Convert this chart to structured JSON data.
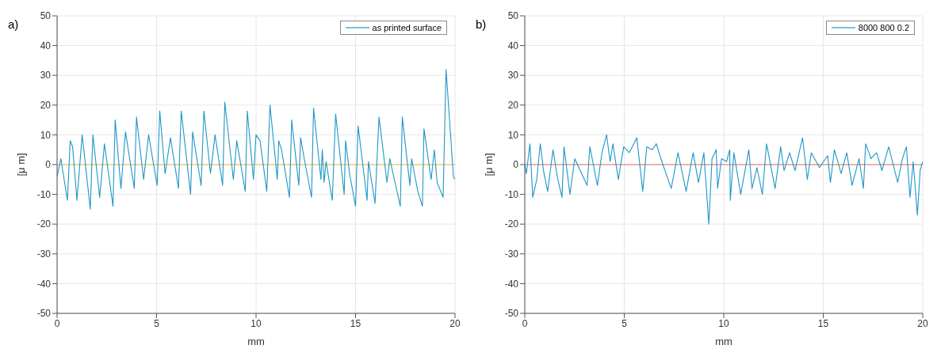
{
  "chart_data": [
    {
      "type": "line",
      "title": "a)",
      "xlabel": "mm",
      "ylabel": "[μ m]",
      "xlim": [
        0,
        20
      ],
      "xticks": [
        0,
        5,
        10,
        15,
        20
      ],
      "ylim": [
        -50,
        50
      ],
      "yticks": [
        -50,
        -40,
        -30,
        -20,
        -10,
        0,
        10,
        20,
        30,
        40,
        50
      ],
      "grid": true,
      "legend": "top right",
      "ref_lines": [
        {
          "axis": "y",
          "value": 0,
          "color": "#f5b54a"
        }
      ],
      "series": [
        {
          "name": "as printed surface",
          "color": "#1f97c6",
          "x": [
            0,
            0.03,
            0.19,
            0.52,
            0.66,
            0.78,
            1.0,
            1.26,
            1.67,
            1.8,
            2.14,
            2.38,
            2.81,
            2.92,
            3.21,
            3.44,
            3.88,
            3.99,
            4.35,
            4.6,
            5.03,
            5.16,
            5.43,
            5.7,
            6.1,
            6.24,
            6.71,
            6.81,
            7.24,
            7.38,
            7.71,
            7.94,
            8.32,
            8.43,
            8.86,
            9.03,
            9.46,
            9.56,
            9.87,
            10.0,
            10.2,
            10.54,
            10.7,
            11.07,
            11.14,
            11.28,
            11.68,
            11.79,
            12.15,
            12.24,
            12.42,
            12.79,
            12.89,
            13.26,
            13.33,
            13.42,
            13.52,
            13.83,
            14.0,
            14.43,
            14.5,
            14.7,
            15.0,
            15.13,
            15.58,
            15.65,
            15.98,
            16.18,
            16.58,
            16.72,
            17.25,
            17.35,
            17.73,
            17.82,
            18.13,
            18.36,
            18.44,
            18.8,
            18.96,
            19.1,
            19.4,
            19.55,
            19.92,
            20.0
          ],
          "values": [
            -4,
            -3,
            2,
            -12,
            8,
            6,
            -12,
            10,
            -15,
            10,
            -11,
            7,
            -14,
            15,
            -8,
            11,
            -8,
            16,
            -5,
            10,
            -7,
            18,
            -3,
            9,
            -8,
            18,
            -10,
            11,
            -7,
            18,
            -3,
            10,
            -7,
            21,
            -5,
            8,
            -9,
            18,
            -5,
            10,
            8,
            -9,
            20,
            -5,
            8,
            5,
            -11,
            15,
            -7,
            9,
            2,
            -11,
            19,
            -5,
            5,
            -6,
            1,
            -12,
            17,
            -10,
            8,
            -3,
            -14,
            13,
            -12,
            1,
            -13,
            16,
            -6,
            2,
            -14,
            16,
            -7,
            2,
            -9,
            -14,
            12,
            -5,
            5,
            -6,
            -11,
            32,
            -4,
            -5
          ]
        }
      ]
    },
    {
      "type": "line",
      "title": "b)",
      "xlabel": "mm",
      "ylabel": "[μ m]",
      "xlim": [
        0,
        20
      ],
      "xticks": [
        0,
        5,
        10,
        15,
        20
      ],
      "ylim": [
        -50,
        50
      ],
      "yticks": [
        -50,
        -40,
        -30,
        -20,
        -10,
        0,
        10,
        20,
        30,
        40,
        50
      ],
      "grid": true,
      "legend": "top right",
      "ref_lines": [
        {
          "axis": "y",
          "value": 0,
          "color": "#e0775a"
        }
      ],
      "series": [
        {
          "name": "8000 800 0.2",
          "color": "#1f97c6",
          "x": [
            0,
            0.08,
            0.26,
            0.4,
            0.6,
            0.78,
            0.94,
            1.15,
            1.42,
            1.63,
            1.87,
            1.97,
            2.27,
            2.51,
            3.13,
            3.27,
            3.65,
            3.88,
            4.11,
            4.29,
            4.43,
            4.7,
            4.97,
            5.25,
            5.63,
            5.93,
            6.13,
            6.41,
            6.61,
            6.89,
            7.36,
            7.7,
            8.11,
            8.46,
            8.73,
            9.0,
            9.25,
            9.41,
            9.62,
            9.69,
            9.89,
            10.14,
            10.3,
            10.33,
            10.51,
            10.85,
            11.26,
            11.42,
            11.67,
            11.94,
            12.15,
            12.58,
            12.86,
            13.03,
            13.31,
            13.58,
            13.96,
            14.2,
            14.4,
            14.81,
            15.22,
            15.36,
            15.56,
            15.9,
            16.18,
            16.45,
            16.8,
            17.02,
            17.13,
            17.4,
            17.68,
            17.95,
            18.29,
            18.74,
            18.98,
            19.18,
            19.36,
            19.52,
            19.73,
            19.87,
            20.0
          ],
          "values": [
            0,
            -3,
            7,
            -11,
            -5,
            7,
            -2,
            -9,
            5,
            -4,
            -11,
            6,
            -10,
            2,
            -7,
            6,
            -7,
            4,
            10,
            1,
            7,
            -5,
            6,
            4,
            9,
            -9,
            6,
            5,
            7,
            1,
            -8,
            4,
            -9,
            4,
            -6,
            4,
            -20,
            2,
            5,
            -8,
            2,
            1,
            5,
            -12,
            4,
            -10,
            5,
            -8,
            -1,
            -10,
            7,
            -8,
            6,
            -2,
            4,
            -2,
            9,
            -5,
            4,
            -1,
            3,
            -6,
            5,
            -3,
            4,
            -7,
            2,
            -8,
            7,
            2,
            4,
            -2,
            6,
            -6,
            2,
            6,
            -11,
            1,
            -17,
            -2,
            1
          ]
        }
      ]
    }
  ]
}
